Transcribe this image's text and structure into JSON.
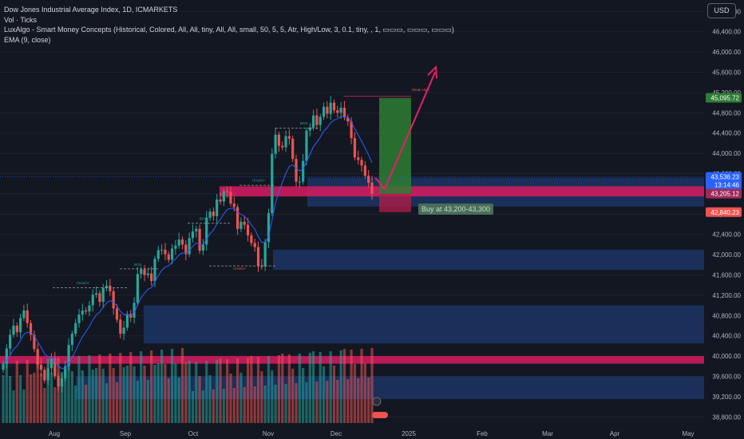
{
  "header": {
    "symbol_line": "Dow Jones Industrial Average Index, 1D, ICMARKETS",
    "vol_line": "Vol · Ticks",
    "lux_line": "LuxAlgo - Smart Money Concepts (Historical, Colored, All, All, tiny, All, All, small, 50, 5, 5, Atr, High/Low, 3, 0.1, tiny, , 1, ▭▭▭, ▭▭▭, ▭▭▭)",
    "ema_line": "EMA (9, close)",
    "currency": "USD"
  },
  "annotation": "Buy at 43,200-43,300",
  "colors": {
    "background": "#131722",
    "up": "#26a69a",
    "down": "#ef5350",
    "ema": "#2962ff",
    "zone_blue": "#1e3a6e",
    "zone_pink": "#d81b60",
    "arrow": "#e91e63",
    "target_green": "#2e7d32",
    "stop_red": "#b71c4a"
  },
  "chart_data": {
    "type": "candlestick",
    "title": "Dow Jones Industrial Average Index, 1D, ICMARKETS",
    "ylim": [
      38600,
      46900
    ],
    "y_ticks": [
      46800,
      46400,
      46000,
      45600,
      45200,
      44800,
      44400,
      44000,
      43600,
      43200,
      42800,
      42400,
      42000,
      41600,
      41200,
      40800,
      40400,
      40000,
      39600,
      39200,
      38800
    ],
    "x_tick_labels": [
      "Aug",
      "Sep",
      "Oct",
      "Nov",
      "Dec",
      "2025",
      "Feb",
      "Mar",
      "Apr",
      "May"
    ],
    "price_labels": [
      {
        "text": "45,095.72",
        "value": 45095.72,
        "color": "#2e7d32"
      },
      {
        "text": "43,536.23",
        "value": 43536.23,
        "color": "#2962ff"
      },
      {
        "text": "13:14:46",
        "value": 43380,
        "color": "#2962ff"
      },
      {
        "text": "43,205.12",
        "value": 43205.12,
        "color": "#9e2a5a"
      },
      {
        "text": "42,840.23",
        "value": 42840.23,
        "color": "#ef5350"
      }
    ],
    "closes": [
      39850,
      40150,
      40420,
      40600,
      40470,
      40750,
      40900,
      40650,
      40420,
      40140,
      39830,
      39730,
      39520,
      39760,
      39950,
      39600,
      39400,
      39560,
      39800,
      40220,
      40440,
      40650,
      40820,
      40900,
      40880,
      41000,
      41210,
      41240,
      41070,
      41340,
      41390,
      41280,
      40940,
      40720,
      40440,
      40560,
      40830,
      40760,
      41050,
      41620,
      41710,
      41600,
      41630,
      41480,
      41920,
      42090,
      42100,
      42010,
      41900,
      42120,
      42180,
      42300,
      42200,
      42010,
      42330,
      42460,
      42510,
      42080,
      42200,
      42730,
      42850,
      42760,
      43090,
      43050,
      43250,
      43240,
      43010,
      42940,
      42510,
      42650,
      42590,
      42380,
      42230,
      42150,
      41780,
      41770,
      42250,
      42820,
      43990,
      44370,
      44150,
      44120,
      44340,
      44290,
      43890,
      43440,
      43440,
      43850,
      44450,
      44510,
      44750,
      44560,
      44720,
      44920,
      44780,
      45000,
      44850,
      44800,
      44900,
      44710,
      44630,
      44300,
      43920,
      43870,
      43760,
      43560,
      43420,
      43200
    ],
    "series": [
      {
        "name": "EMA (9, close)",
        "type": "line"
      },
      {
        "name": "Vol",
        "type": "bar"
      }
    ],
    "structure_labels": [
      "CHoCH",
      "BOS",
      "BOS",
      "CHoCH",
      "CHoCH",
      "BOS",
      "Weak High"
    ],
    "zones": [
      {
        "kind": "demand",
        "color": "blue",
        "y_range": [
          41700,
          42100
        ]
      },
      {
        "kind": "demand",
        "color": "blue",
        "y_range": [
          40250,
          41000
        ]
      },
      {
        "kind": "demand",
        "color": "blue",
        "y_range": [
          39150,
          39600
        ]
      },
      {
        "kind": "demand",
        "color": "blue",
        "y_range": [
          42950,
          43520
        ]
      },
      {
        "kind": "supply",
        "color": "pink",
        "y_range": [
          43150,
          43350
        ]
      },
      {
        "kind": "supply",
        "color": "pink",
        "y_range": [
          39850,
          40000
        ]
      }
    ],
    "trade_setup": {
      "entry_range": [
        43200,
        43300
      ],
      "target": 45095.72,
      "stop": 42840.23
    }
  }
}
